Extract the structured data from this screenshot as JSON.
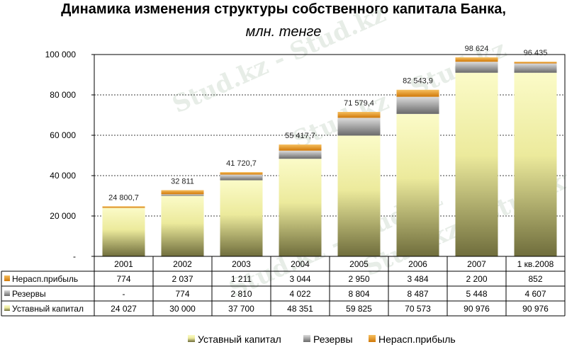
{
  "chart_data": {
    "type": "bar",
    "stacked": true,
    "title": "Динамика изменения структуры собственного капитала Банка,",
    "subtitle": "млн. тенге",
    "categories": [
      "2001",
      "2002",
      "2003",
      "2004",
      "2005",
      "2006",
      "2007",
      "1 кв.2008"
    ],
    "totals": [
      "24 800,7",
      "32 811",
      "41 720,7",
      "55 417,7",
      "71 579,4",
      "82 543,9",
      "98 624",
      "96 435"
    ],
    "yticks": [
      "-",
      "20 000",
      "40 000",
      "60 000",
      "80 000",
      "100 000"
    ],
    "ylim": [
      0,
      100000
    ],
    "grid": "horizontal dashed",
    "legend_position": "bottom",
    "series": [
      {
        "name": "Уставный капитал",
        "color": "#d4cc6a",
        "values": [
          24027,
          30000,
          37700,
          48351,
          59825,
          70573,
          90976,
          90976
        ],
        "labels": [
          "24 027",
          "30 000",
          "37 700",
          "48 351",
          "59 825",
          "70 573",
          "90 976",
          "90 976"
        ]
      },
      {
        "name": "Резервы",
        "color": "#7a7a7a",
        "values": [
          0,
          774,
          2810,
          4022,
          8804,
          8487,
          5448,
          4607
        ],
        "labels": [
          "-",
          "774",
          "2 810",
          "4 022",
          "8 804",
          "8 487",
          "5 448",
          "4 607"
        ]
      },
      {
        "name": "Нерасп.прибыль",
        "color": "#e08a10",
        "values": [
          774,
          2037,
          1211,
          3044,
          2950,
          3484,
          2200,
          852
        ],
        "labels": [
          "774",
          "2 037",
          "1 211",
          "3 044",
          "2 950",
          "3 484",
          "2 200",
          "852"
        ]
      }
    ],
    "table_rows": [
      "Нерасп.прибыль",
      "Резервы",
      "Уставный капитал"
    ]
  },
  "watermark": "Stud.kz - Stud.kz"
}
